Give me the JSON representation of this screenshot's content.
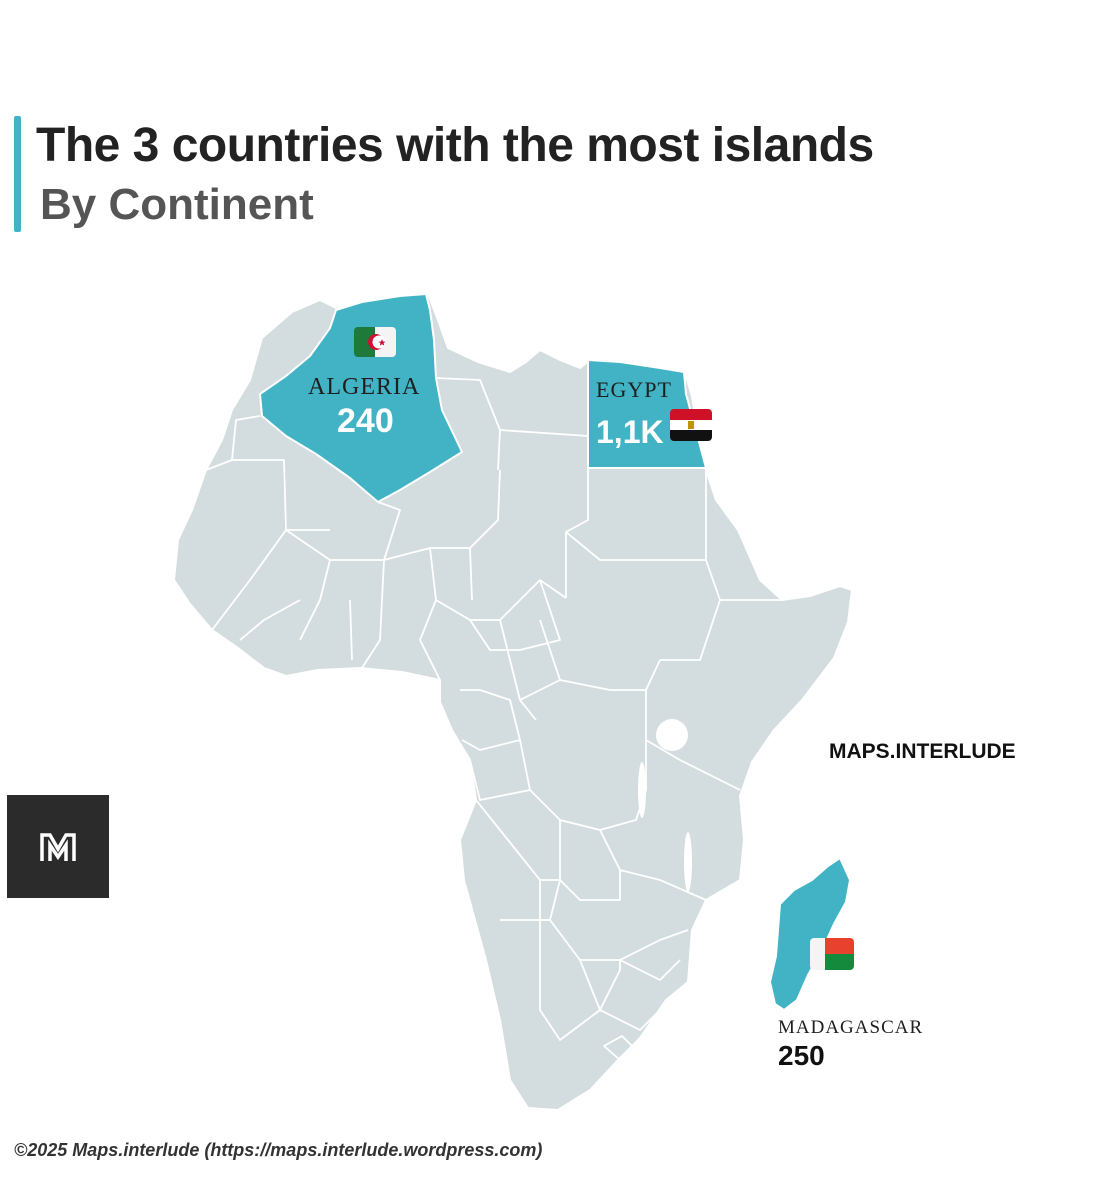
{
  "header": {
    "title": "The 3 countries with the most islands",
    "subtitle": "By Continent"
  },
  "countries": [
    {
      "name": "ALGERIA",
      "value": "240"
    },
    {
      "name": "EGYPT",
      "value": "1,1K"
    },
    {
      "name": "MADAGASCAR",
      "value": "250"
    }
  ],
  "branding": {
    "watermark": "MAPS.INTERLUDE",
    "logo_letter": "M",
    "footer": "©2025 Maps.interlude (https://maps.interlude.wordpress.com)"
  },
  "colors": {
    "highlight": "#42b3c5",
    "land": "#d3dcdf",
    "accent_bar": "#42b3c5",
    "logo_background": "#2b2b2b"
  }
}
